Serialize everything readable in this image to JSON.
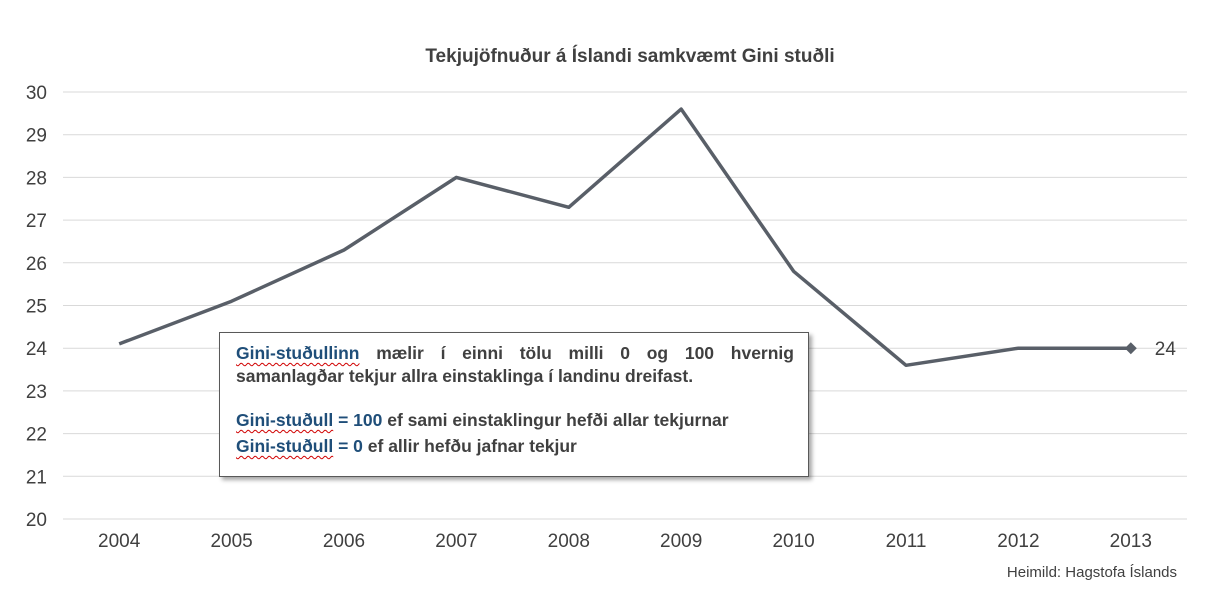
{
  "chart_data": {
    "type": "line",
    "title": "Tekjujöfnuður á Íslandi samkvæmt Gini stuðli",
    "xlabel": "",
    "ylabel": "",
    "categories": [
      "2004",
      "2005",
      "2006",
      "2007",
      "2008",
      "2009",
      "2010",
      "2011",
      "2012",
      "2013"
    ],
    "series": [
      {
        "values": [
          24.1,
          25.1,
          26.3,
          28.0,
          27.3,
          29.6,
          25.8,
          23.6,
          24.0,
          24.0
        ]
      }
    ],
    "ylim": [
      20,
      30
    ],
    "yticks": [
      "20",
      "21",
      "22",
      "23",
      "24",
      "25",
      "26",
      "27",
      "28",
      "29",
      "30"
    ],
    "grid": "horizontal",
    "legend": "none",
    "last_point_marker": "diamond",
    "last_point_label": "24",
    "line_color": "#595f68",
    "grid_color": "#d9d9d9",
    "text_color": "#404040"
  },
  "info_box": {
    "line1_term": "Gini-stuðullinn",
    "line1_text": "mælir í einni tölu milli 0 og 100 hvernig samanlagðar tekjur allra einstaklinga í landinu dreifast.",
    "line2_term": "Gini-stuðull",
    "line2_eq": " = ",
    "line2_value": "100",
    "line2_text": " ef sami einstaklingur hefði allar tekjurnar",
    "line3_term": "Gini-stuðull",
    "line3_eq": " = ",
    "line3_value": "0",
    "line3_text": " ef allir hefðu jafnar tekjur",
    "term_color": "#1f4e79"
  },
  "source": "Heimild:  Hagstofa  Íslands"
}
